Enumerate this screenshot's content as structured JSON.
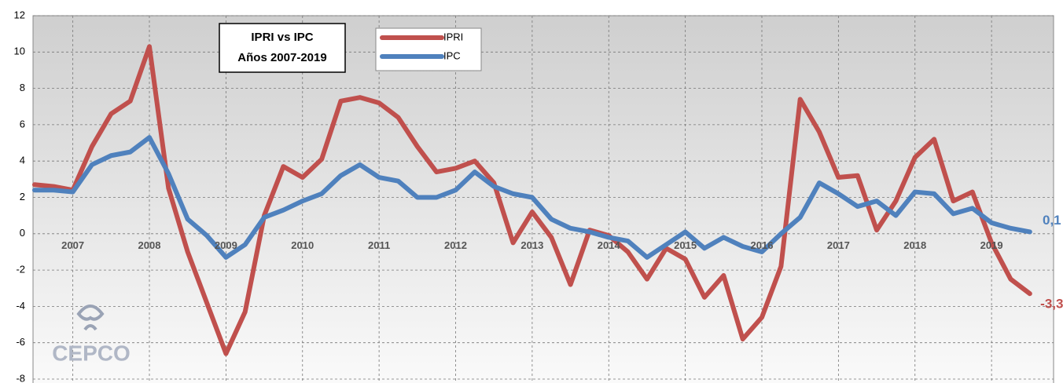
{
  "chart_data": {
    "type": "line",
    "title": "IPRI vs IPC",
    "subtitle": "Años 2007-2019",
    "logo_text": "CEPCO",
    "x": [
      2007,
      2007.25,
      2007.5,
      2007.75,
      2008,
      2008.25,
      2008.5,
      2008.75,
      2009,
      2009.25,
      2009.5,
      2009.75,
      2010,
      2010.25,
      2010.5,
      2010.75,
      2011,
      2011.25,
      2011.5,
      2011.75,
      2012,
      2012.25,
      2012.5,
      2012.75,
      2013,
      2013.25,
      2013.5,
      2013.75,
      2014,
      2014.25,
      2014.5,
      2014.75,
      2015,
      2015.25,
      2015.5,
      2015.75,
      2016,
      2016.25,
      2016.5,
      2016.75,
      2017,
      2017.25,
      2017.5,
      2017.75,
      2018,
      2018.25,
      2018.5,
      2018.75,
      2019,
      2019.25,
      2019.5,
      2019.75,
      2020
    ],
    "series": [
      {
        "name": "IPRI",
        "color": "#c0504d",
        "values": [
          2.7,
          2.6,
          2.4,
          4.8,
          6.6,
          7.3,
          10.3,
          2.5,
          -1.0,
          -3.8,
          -6.6,
          -4.3,
          1.0,
          3.7,
          3.1,
          4.1,
          7.3,
          7.5,
          7.2,
          6.4,
          4.8,
          3.4,
          3.6,
          4.0,
          2.8,
          -0.5,
          1.2,
          -0.2,
          -2.8,
          0.2,
          -0.1,
          -1.0,
          -2.5,
          -0.8,
          -1.4,
          -3.5,
          -2.3,
          -5.8,
          -4.6,
          -1.8,
          7.4,
          5.6,
          3.1,
          3.2,
          0.2,
          1.8,
          4.2,
          5.2,
          1.8,
          2.3,
          -0.5,
          -2.5,
          -3.3
        ],
        "value_labels": [
          null,
          null,
          null,
          null,
          null,
          null,
          null,
          null,
          null,
          null,
          null,
          null,
          null,
          null,
          null,
          null,
          null,
          null,
          null,
          null,
          null,
          null,
          null,
          null,
          null,
          null,
          null,
          null,
          null,
          null,
          null,
          null,
          null,
          null,
          null,
          null,
          null,
          null,
          null,
          null,
          null,
          null,
          null,
          null,
          null,
          null,
          null,
          null,
          null,
          null,
          null,
          null,
          "-3,3"
        ]
      },
      {
        "name": "IPC",
        "color": "#4f81bd",
        "values": [
          2.4,
          2.4,
          2.3,
          3.8,
          4.3,
          4.5,
          5.3,
          3.3,
          0.8,
          -0.1,
          -1.3,
          -0.6,
          0.9,
          1.3,
          1.8,
          2.2,
          3.2,
          3.8,
          3.1,
          2.9,
          2.0,
          2.0,
          2.4,
          3.4,
          2.6,
          2.2,
          2.0,
          0.8,
          0.3,
          0.1,
          -0.2,
          -0.4,
          -1.3,
          -0.6,
          0.1,
          -0.8,
          -0.2,
          -0.7,
          -1.0,
          0.0,
          0.9,
          2.8,
          2.2,
          1.5,
          1.8,
          1.0,
          2.3,
          2.2,
          1.1,
          1.4,
          0.6,
          0.3,
          0.1
        ],
        "value_labels": [
          null,
          null,
          null,
          null,
          null,
          null,
          null,
          null,
          null,
          null,
          null,
          null,
          null,
          null,
          null,
          null,
          null,
          null,
          null,
          null,
          null,
          null,
          null,
          null,
          null,
          null,
          null,
          null,
          null,
          null,
          null,
          null,
          null,
          null,
          null,
          null,
          null,
          null,
          null,
          null,
          null,
          null,
          null,
          null,
          null,
          null,
          null,
          null,
          null,
          null,
          null,
          null,
          "0,1"
        ]
      }
    ],
    "xlim": [
      2006.98,
      2020.31
    ],
    "xticks": [
      {
        "value": 2007.5,
        "label": "2007"
      },
      {
        "value": 2008.5,
        "label": "2008"
      },
      {
        "value": 2009.5,
        "label": "2009"
      },
      {
        "value": 2010.5,
        "label": "2010"
      },
      {
        "value": 2011.5,
        "label": "2011"
      },
      {
        "value": 2012.5,
        "label": "2012"
      },
      {
        "value": 2013.5,
        "label": "2013"
      },
      {
        "value": 2014.5,
        "label": "2014"
      },
      {
        "value": 2015.5,
        "label": "2015"
      },
      {
        "value": 2016.5,
        "label": "2016"
      },
      {
        "value": 2017.5,
        "label": "2017"
      },
      {
        "value": 2018.5,
        "label": "2018"
      },
      {
        "value": 2019.5,
        "label": "2019"
      }
    ],
    "ylim": [
      -8,
      12
    ],
    "yticks": [
      -8,
      -6,
      -4,
      -2,
      0,
      2,
      4,
      6,
      8,
      10,
      12
    ],
    "grid": true
  }
}
